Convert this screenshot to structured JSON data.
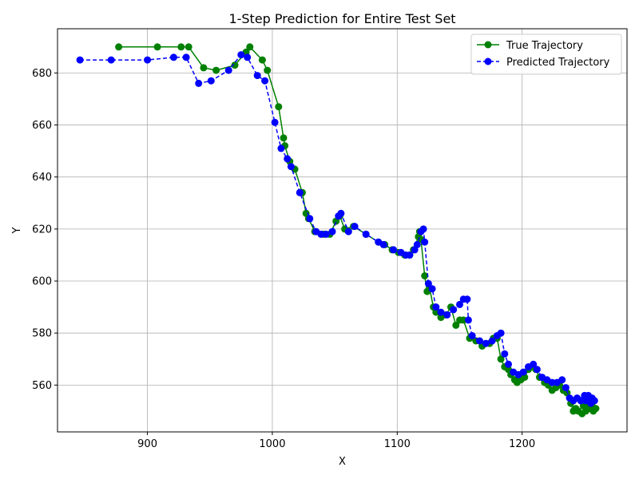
{
  "chart_data": {
    "type": "line",
    "title": "1-Step Prediction for Entire Test Set",
    "xlabel": "X",
    "ylabel": "Y",
    "xlim": [
      828,
      1284
    ],
    "ylim": [
      542,
      697
    ],
    "xticks": [
      900,
      1000,
      1100,
      1200
    ],
    "yticks": [
      560,
      580,
      600,
      620,
      640,
      660,
      680
    ],
    "grid": true,
    "legend_position": "top-right",
    "series": [
      {
        "name": "True Trajectory",
        "color": "#008000",
        "linestyle": "solid",
        "marker": "circle",
        "x": [
          877,
          908,
          927,
          933,
          945,
          955,
          970,
          979,
          982,
          992,
          996,
          1005,
          1009,
          1010,
          1014,
          1018,
          1024,
          1027,
          1029,
          1034,
          1041,
          1046,
          1051,
          1054,
          1058,
          1065,
          1075,
          1085,
          1090,
          1096,
          1101,
          1106,
          1110,
          1113,
          1117,
          1118,
          1119,
          1122,
          1124,
          1126,
          1129,
          1131,
          1135,
          1139,
          1143,
          1147,
          1150,
          1153,
          1158,
          1163,
          1168,
          1171,
          1174,
          1177,
          1180,
          1183,
          1186,
          1189,
          1191,
          1194,
          1196,
          1199,
          1202,
          1205,
          1208,
          1211,
          1214,
          1218,
          1221,
          1224,
          1227,
          1230,
          1233,
          1236,
          1239,
          1241,
          1243,
          1245,
          1248,
          1251,
          1254,
          1257,
          1259,
          1256,
          1252,
          1249
        ],
        "y": [
          690,
          690,
          690,
          690,
          682,
          681,
          683,
          688,
          690,
          685,
          681,
          667,
          655,
          652,
          646,
          643,
          634,
          626,
          624,
          619,
          618,
          618,
          623,
          625,
          620,
          621,
          618,
          615,
          614,
          612,
          611,
          610,
          610,
          612,
          617,
          619,
          616,
          602,
          596,
          597,
          590,
          588,
          586,
          587,
          590,
          583,
          585,
          585,
          578,
          577,
          575,
          576,
          576,
          578,
          578,
          570,
          567,
          566,
          564,
          562,
          561,
          562,
          563,
          566,
          567,
          566,
          563,
          561,
          560,
          558,
          559,
          560,
          558,
          557,
          553,
          550,
          551,
          550,
          549,
          550,
          551,
          550,
          551,
          552,
          553,
          552
        ]
      },
      {
        "name": "Predicted Trajectory",
        "color": "#0000ff",
        "linestyle": "dashed",
        "marker": "circle",
        "x": [
          846,
          871,
          900,
          921,
          931,
          941,
          951,
          965,
          975,
          980,
          988,
          994,
          1002,
          1007,
          1012,
          1015,
          1022,
          1030,
          1035,
          1039,
          1043,
          1048,
          1053,
          1055,
          1061,
          1066,
          1075,
          1085,
          1089,
          1097,
          1103,
          1107,
          1110,
          1114,
          1116,
          1119,
          1121,
          1122,
          1125,
          1128,
          1131,
          1135,
          1140,
          1145,
          1150,
          1153,
          1156,
          1157,
          1160,
          1166,
          1171,
          1176,
          1180,
          1183,
          1186,
          1189,
          1193,
          1197,
          1201,
          1205,
          1209,
          1212,
          1216,
          1220,
          1224,
          1228,
          1232,
          1235,
          1238,
          1241,
          1244,
          1247,
          1250,
          1253,
          1256,
          1258,
          1255,
          1251
        ],
        "y": [
          685,
          685,
          685,
          686,
          686,
          676,
          677,
          681,
          687,
          686,
          679,
          677,
          661,
          651,
          647,
          644,
          634,
          624,
          619,
          618,
          618,
          619,
          625,
          626,
          619,
          621,
          618,
          615,
          614,
          612,
          611,
          610,
          610,
          612,
          614,
          619,
          620,
          615,
          599,
          597,
          590,
          588,
          587,
          589,
          591,
          593,
          593,
          585,
          579,
          577,
          576,
          577,
          579,
          580,
          572,
          568,
          565,
          564,
          565,
          567,
          568,
          566,
          563,
          562,
          561,
          561,
          562,
          559,
          555,
          554,
          555,
          554,
          556,
          556,
          555,
          554,
          553,
          554
        ]
      }
    ]
  }
}
